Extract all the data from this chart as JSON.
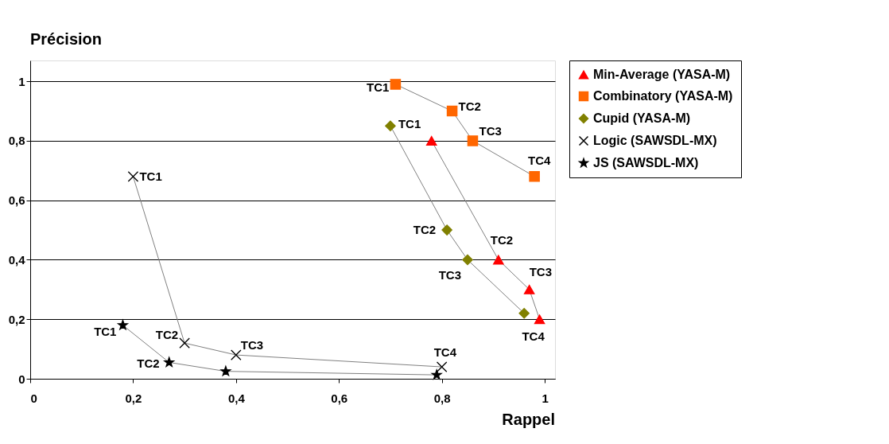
{
  "chart_data": {
    "type": "line",
    "xlabel": "Rappel",
    "ylabel": "Précision",
    "xlim": [
      0,
      1.02
    ],
    "ylim": [
      0,
      1.07
    ],
    "xticks": [
      {
        "value": 0,
        "label": "0"
      },
      {
        "value": 0.2,
        "label": "0,2"
      },
      {
        "value": 0.4,
        "label": "0,4"
      },
      {
        "value": 0.6,
        "label": "0,6"
      },
      {
        "value": 0.8,
        "label": "0,8"
      },
      {
        "value": 1,
        "label": "1"
      }
    ],
    "yticks": [
      {
        "value": 0,
        "label": "0"
      },
      {
        "value": 0.2,
        "label": "0,2"
      },
      {
        "value": 0.4,
        "label": "0,4"
      },
      {
        "value": 0.6,
        "label": "0,6"
      },
      {
        "value": 0.8,
        "label": "0,8"
      },
      {
        "value": 1,
        "label": "1"
      }
    ],
    "grid": "y",
    "legend": "right",
    "line_style": "solid",
    "series": [
      {
        "name": "Min-Average (YASA-M)",
        "color": "#ff0000",
        "marker": "triangle",
        "x": [
          0.78,
          0.91,
          0.97,
          0.99
        ],
        "values": [
          0.8,
          0.4,
          0.3,
          0.2
        ]
      },
      {
        "name": "Combinatory (YASA-M)",
        "color": "#ff6600",
        "marker": "square",
        "x": [
          0.71,
          0.82,
          0.86,
          0.98
        ],
        "values": [
          0.99,
          0.9,
          0.8,
          0.68
        ]
      },
      {
        "name": "Cupid (YASA-M)",
        "color": "#808000",
        "marker": "diamond",
        "x": [
          0.7,
          0.81,
          0.85,
          0.96
        ],
        "values": [
          0.85,
          0.5,
          0.4,
          0.22
        ]
      },
      {
        "name": "Logic (SAWSDL-MX)",
        "color": "#000000",
        "marker": "cross",
        "x": [
          0.2,
          0.3,
          0.4,
          0.8
        ],
        "values": [
          0.68,
          0.12,
          0.08,
          0.04
        ]
      },
      {
        "name": "JS (SAWSDL-MX)",
        "color": "#000000",
        "marker": "star",
        "x": [
          0.18,
          0.27,
          0.38,
          0.79
        ],
        "values": [
          0.18,
          0.055,
          0.025,
          0.013
        ]
      }
    ],
    "annotations": [
      {
        "text": "TC1",
        "x": 0.71,
        "y": 0.99
      },
      {
        "text": "TC2",
        "x": 0.82,
        "y": 0.9
      },
      {
        "text": "TC3",
        "x": 0.86,
        "y": 0.8
      },
      {
        "text": "TC4",
        "x": 0.98,
        "y": 0.68
      },
      {
        "text": "TC1",
        "x": 0.7,
        "y": 0.85
      },
      {
        "text": "TC2",
        "x": 0.81,
        "y": 0.5
      },
      {
        "text": "TC3",
        "x": 0.85,
        "y": 0.4
      },
      {
        "text": "TC2",
        "x": 0.91,
        "y": 0.4
      },
      {
        "text": "TC3",
        "x": 0.97,
        "y": 0.3
      },
      {
        "text": "TC4",
        "x": 0.99,
        "y": 0.2
      },
      {
        "text": "TC1",
        "x": 0.2,
        "y": 0.68
      },
      {
        "text": "TC2",
        "x": 0.3,
        "y": 0.12
      },
      {
        "text": "TC3",
        "x": 0.4,
        "y": 0.08
      },
      {
        "text": "TC4",
        "x": 0.8,
        "y": 0.04
      },
      {
        "text": "TC1",
        "x": 0.18,
        "y": 0.18
      },
      {
        "text": "TC2",
        "x": 0.27,
        "y": 0.055
      }
    ]
  }
}
